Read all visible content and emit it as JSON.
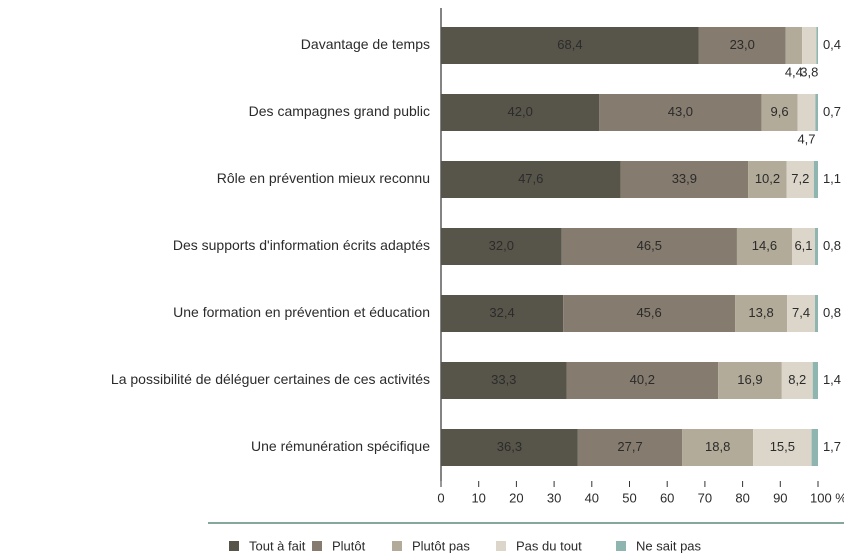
{
  "chart_data": {
    "type": "bar",
    "orientation": "horizontal",
    "stacked": true,
    "categories": [
      "Davantage de temps",
      "Des campagnes grand public",
      "Rôle en prévention mieux reconnu",
      "Des supports d'information écrits adaptés",
      "Une formation en prévention et éducation",
      "La possibilité de déléguer certaines de ces activités",
      "Une rémunération spécifique"
    ],
    "series": [
      {
        "name": "Tout à fait",
        "color": "#57554a",
        "values": [
          68.4,
          42.0,
          47.6,
          32.0,
          32.4,
          33.3,
          36.3
        ],
        "value_labels": [
          "68,4",
          "42,0",
          "47,6",
          "32,0",
          "32,4",
          "33,3",
          "36,3"
        ]
      },
      {
        "name": "Plutôt",
        "color": "#857b6e",
        "values": [
          23.0,
          43.0,
          33.9,
          46.5,
          45.6,
          40.2,
          27.7
        ],
        "value_labels": [
          "23,0",
          "43,0",
          "33,9",
          "46,5",
          "45,6",
          "40,2",
          "27,7"
        ]
      },
      {
        "name": "Plutôt pas",
        "color": "#b3ab99",
        "values": [
          4.4,
          9.6,
          10.2,
          14.6,
          13.8,
          16.9,
          18.8
        ],
        "value_labels": [
          "4,4",
          "9,6",
          "10,2",
          "14,6",
          "13,8",
          "16,9",
          "18,8"
        ]
      },
      {
        "name": "Pas du tout",
        "color": "#dcd6ca",
        "values": [
          3.8,
          4.7,
          7.2,
          6.1,
          7.4,
          8.2,
          15.5
        ],
        "value_labels": [
          "3,8",
          "4,7",
          "7,2",
          "6,1",
          "7,4",
          "8,2",
          "15,5"
        ]
      },
      {
        "name": "Ne sait pas",
        "color": "#8fb5b0",
        "values": [
          0.4,
          0.7,
          1.1,
          0.8,
          0.8,
          1.4,
          1.7
        ],
        "value_labels": [
          "0,4",
          "0,7",
          "1,1",
          "0,8",
          "0,8",
          "1,4",
          "1,7"
        ]
      }
    ],
    "xlim": [
      0,
      100
    ],
    "xticks": [
      0,
      10,
      20,
      30,
      40,
      50,
      60,
      70,
      80,
      90,
      {
        "value": 100,
        "label": "100 %"
      }
    ],
    "legend": "bottom"
  }
}
